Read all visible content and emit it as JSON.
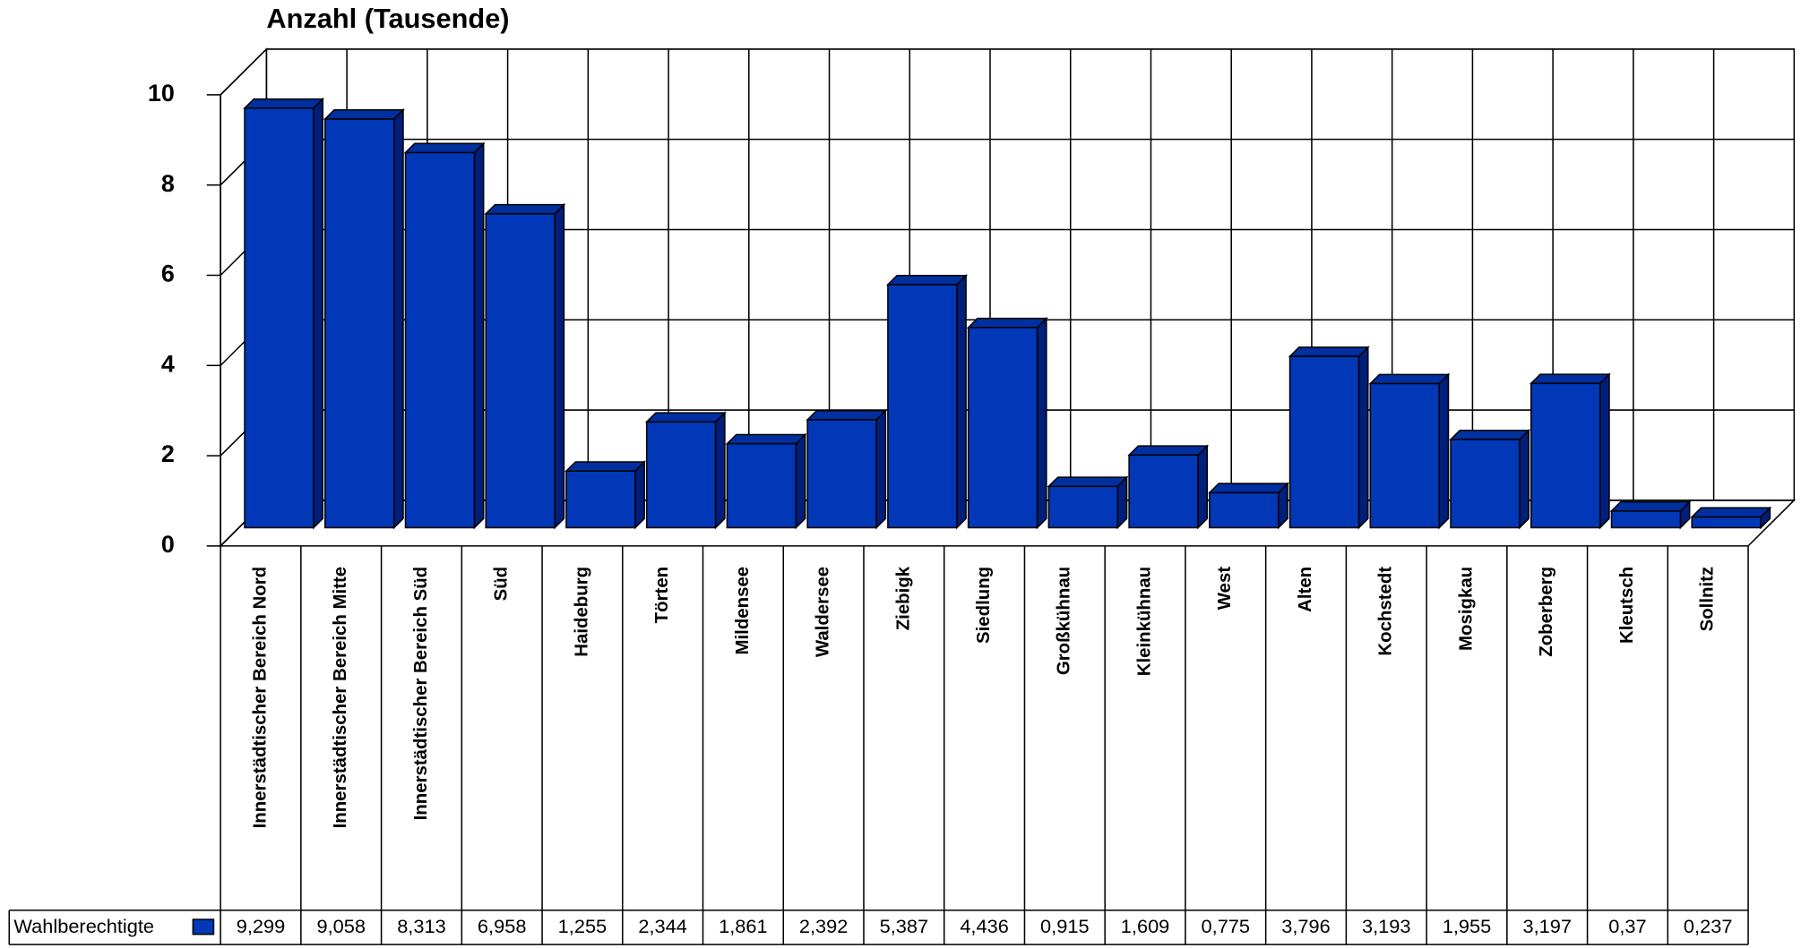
{
  "chart_data": {
    "type": "bar3d",
    "title": "Anzahl (Tausende)",
    "categories": [
      "Innerstädtischer Bereich Nord",
      "Innerstädtischer Bereich Mitte",
      "Innerstädtischer Bereich Süd",
      "Süd",
      "Haideburg",
      "Törten",
      "Mildensee",
      "Waldersee",
      "Ziebigk",
      "Siedlung",
      "Großkühnau",
      "Kleinkühnau",
      "West",
      "Alten",
      "Kochstedt",
      "Mosigkau",
      "Zoberberg",
      "Kleutsch",
      "Sollnitz"
    ],
    "series": [
      {
        "name": "Wahlberechtigte",
        "color": "#0038b8",
        "values": [
          9.299,
          9.058,
          8.313,
          6.958,
          1.255,
          2.344,
          1.861,
          2.392,
          5.387,
          4.436,
          0.915,
          1.609,
          0.775,
          3.796,
          3.193,
          1.955,
          3.197,
          0.37,
          0.237
        ],
        "value_labels": [
          "9,299",
          "9,058",
          "8,313",
          "6,958",
          "1,255",
          "2,344",
          "1,861",
          "2,392",
          "5,387",
          "4,436",
          "0,915",
          "1,609",
          "0,775",
          "3,796",
          "3,193",
          "1,955",
          "3,197",
          "0,37",
          "0,237"
        ]
      }
    ],
    "ylim": [
      0,
      10
    ],
    "yticks": [
      0,
      2,
      4,
      6,
      8,
      10
    ],
    "grid": true
  }
}
